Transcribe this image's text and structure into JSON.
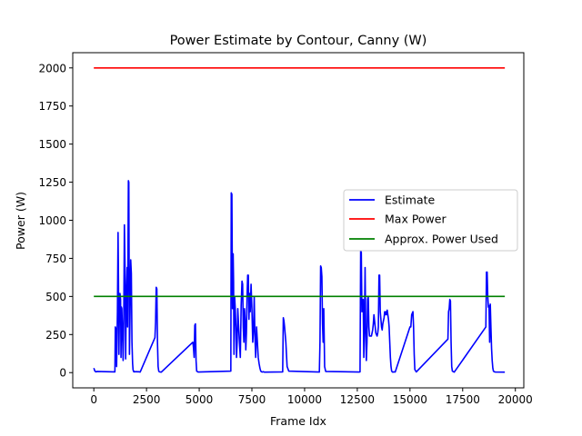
{
  "chart_data": {
    "type": "line",
    "title": "Power Estimate by Contour, Canny (W)",
    "xlabel": "Frame Idx",
    "ylabel": "Power (W)",
    "xlim": [
      -1000,
      20400
    ],
    "ylim": [
      -100,
      2100
    ],
    "x_ticks": [
      0,
      2500,
      5000,
      7500,
      10000,
      12500,
      15000,
      17500,
      20000
    ],
    "x_tick_labels": [
      "0",
      "2500",
      "5000",
      "7500",
      "10000",
      "12500",
      "15000",
      "17500",
      "20000"
    ],
    "y_ticks": [
      0,
      250,
      500,
      750,
      1000,
      1250,
      1500,
      1750,
      2000
    ],
    "y_tick_labels": [
      "0",
      "250",
      "500",
      "750",
      "1000",
      "1250",
      "1500",
      "1750",
      "2000"
    ],
    "grid": false,
    "legend_position": "center-right",
    "series": [
      {
        "name": "Estimate",
        "color": "#0000ff",
        "x": [
          0,
          50,
          100,
          150,
          1000,
          1020,
          1060,
          1080,
          1120,
          1150,
          1170,
          1190,
          1210,
          1240,
          1270,
          1290,
          1310,
          1330,
          1360,
          1390,
          1420,
          1450,
          1480,
          1510,
          1540,
          1580,
          1600,
          1640,
          1660,
          1690,
          1720,
          1750,
          1780,
          1810,
          1840,
          1860,
          1880,
          1900,
          1920,
          1950,
          1980,
          2020,
          2060,
          2100,
          2200,
          2900,
          2930,
          2960,
          2990,
          3020,
          3050,
          3080,
          3110,
          3200,
          4700,
          4730,
          4760,
          4790,
          4820,
          4850,
          4880,
          4950,
          6500,
          6520,
          6550,
          6580,
          6610,
          6630,
          6650,
          6680,
          6710,
          6740,
          6770,
          6800,
          6830,
          6860,
          6900,
          6950,
          6990,
          7030,
          7060,
          7090,
          7120,
          7150,
          7180,
          7210,
          7240,
          7270,
          7300,
          7330,
          7360,
          7390,
          7420,
          7460,
          7500,
          7540,
          7580,
          7610,
          7640,
          7680,
          7720,
          7760,
          7800,
          7840,
          7880,
          7920,
          7960,
          8000,
          8040,
          8100,
          8960,
          8990,
          9020,
          9050,
          9080,
          9110,
          9140,
          9170,
          9250,
          10700,
          10730,
          10760,
          10790,
          10820,
          10850,
          10880,
          10910,
          10950,
          11000,
          12600,
          12630,
          12660,
          12690,
          12720,
          12750,
          12780,
          12810,
          12840,
          12870,
          12900,
          12930,
          12960,
          12990,
          13020,
          13050,
          13080,
          13110,
          13140,
          13170,
          13200,
          13230,
          13260,
          13290,
          13320,
          13350,
          13380,
          13410,
          13440,
          13470,
          13500,
          13530,
          13560,
          13590,
          13620,
          13650,
          13680,
          13710,
          13740,
          13770,
          13800,
          13830,
          13860,
          13890,
          13920,
          13950,
          13980,
          14010,
          14040,
          14070,
          14100,
          14130,
          14160,
          14190,
          14220,
          14300,
          15000,
          15040,
          15080,
          15110,
          15140,
          15170,
          15200,
          15230,
          15300,
          16800,
          16830,
          16860,
          16890,
          16920,
          16950,
          16980,
          17010,
          17100,
          18600,
          18630,
          18660,
          18690,
          18720,
          18750,
          18780,
          18810,
          18840,
          18870,
          18900,
          18930,
          18960,
          18990,
          19050,
          19500
        ],
        "y": [
          30,
          10,
          5,
          8,
          5,
          300,
          280,
          40,
          400,
          920,
          600,
          120,
          350,
          520,
          480,
          100,
          430,
          420,
          260,
          80,
          350,
          970,
          700,
          90,
          500,
          690,
          300,
          1260,
          1250,
          120,
          400,
          740,
          650,
          200,
          60,
          20,
          10,
          5,
          8,
          6,
          5,
          7,
          5,
          6,
          4,
          230,
          330,
          560,
          550,
          200,
          40,
          10,
          5,
          3,
          200,
          160,
          100,
          310,
          320,
          80,
          10,
          4,
          10,
          1180,
          1170,
          420,
          780,
          600,
          120,
          500,
          420,
          300,
          100,
          200,
          420,
          330,
          220,
          100,
          440,
          600,
          580,
          300,
          200,
          420,
          340,
          150,
          260,
          500,
          640,
          640,
          350,
          520,
          400,
          580,
          420,
          200,
          300,
          500,
          250,
          100,
          300,
          200,
          100,
          60,
          30,
          10,
          5,
          4,
          6,
          3,
          5,
          360,
          340,
          300,
          250,
          200,
          120,
          40,
          10,
          4,
          200,
          700,
          690,
          630,
          320,
          200,
          420,
          40,
          8,
          4,
          5,
          800,
          790,
          400,
          420,
          480,
          100,
          300,
          690,
          280,
          80,
          200,
          480,
          500,
          300,
          240,
          240,
          240,
          240,
          260,
          280,
          320,
          380,
          340,
          300,
          260,
          250,
          240,
          260,
          300,
          640,
          640,
          400,
          350,
          300,
          280,
          320,
          340,
          360,
          400,
          380,
          400,
          380,
          410,
          380,
          350,
          300,
          200,
          100,
          40,
          10,
          5,
          3,
          5,
          4,
          300,
          300,
          380,
          390,
          400,
          300,
          120,
          20,
          5,
          220,
          400,
          420,
          480,
          470,
          200,
          40,
          10,
          3,
          300,
          660,
          660,
          500,
          430,
          440,
          200,
          450,
          300,
          160,
          80,
          30,
          10,
          6,
          4,
          3
        ]
      },
      {
        "name": "Max Power",
        "color": "#ff0000",
        "x": [
          0,
          19500
        ],
        "y": [
          2000,
          2000
        ]
      },
      {
        "name": "Approx. Power Used",
        "color": "#008000",
        "x": [
          0,
          19500
        ],
        "y": [
          500,
          500
        ]
      }
    ]
  }
}
